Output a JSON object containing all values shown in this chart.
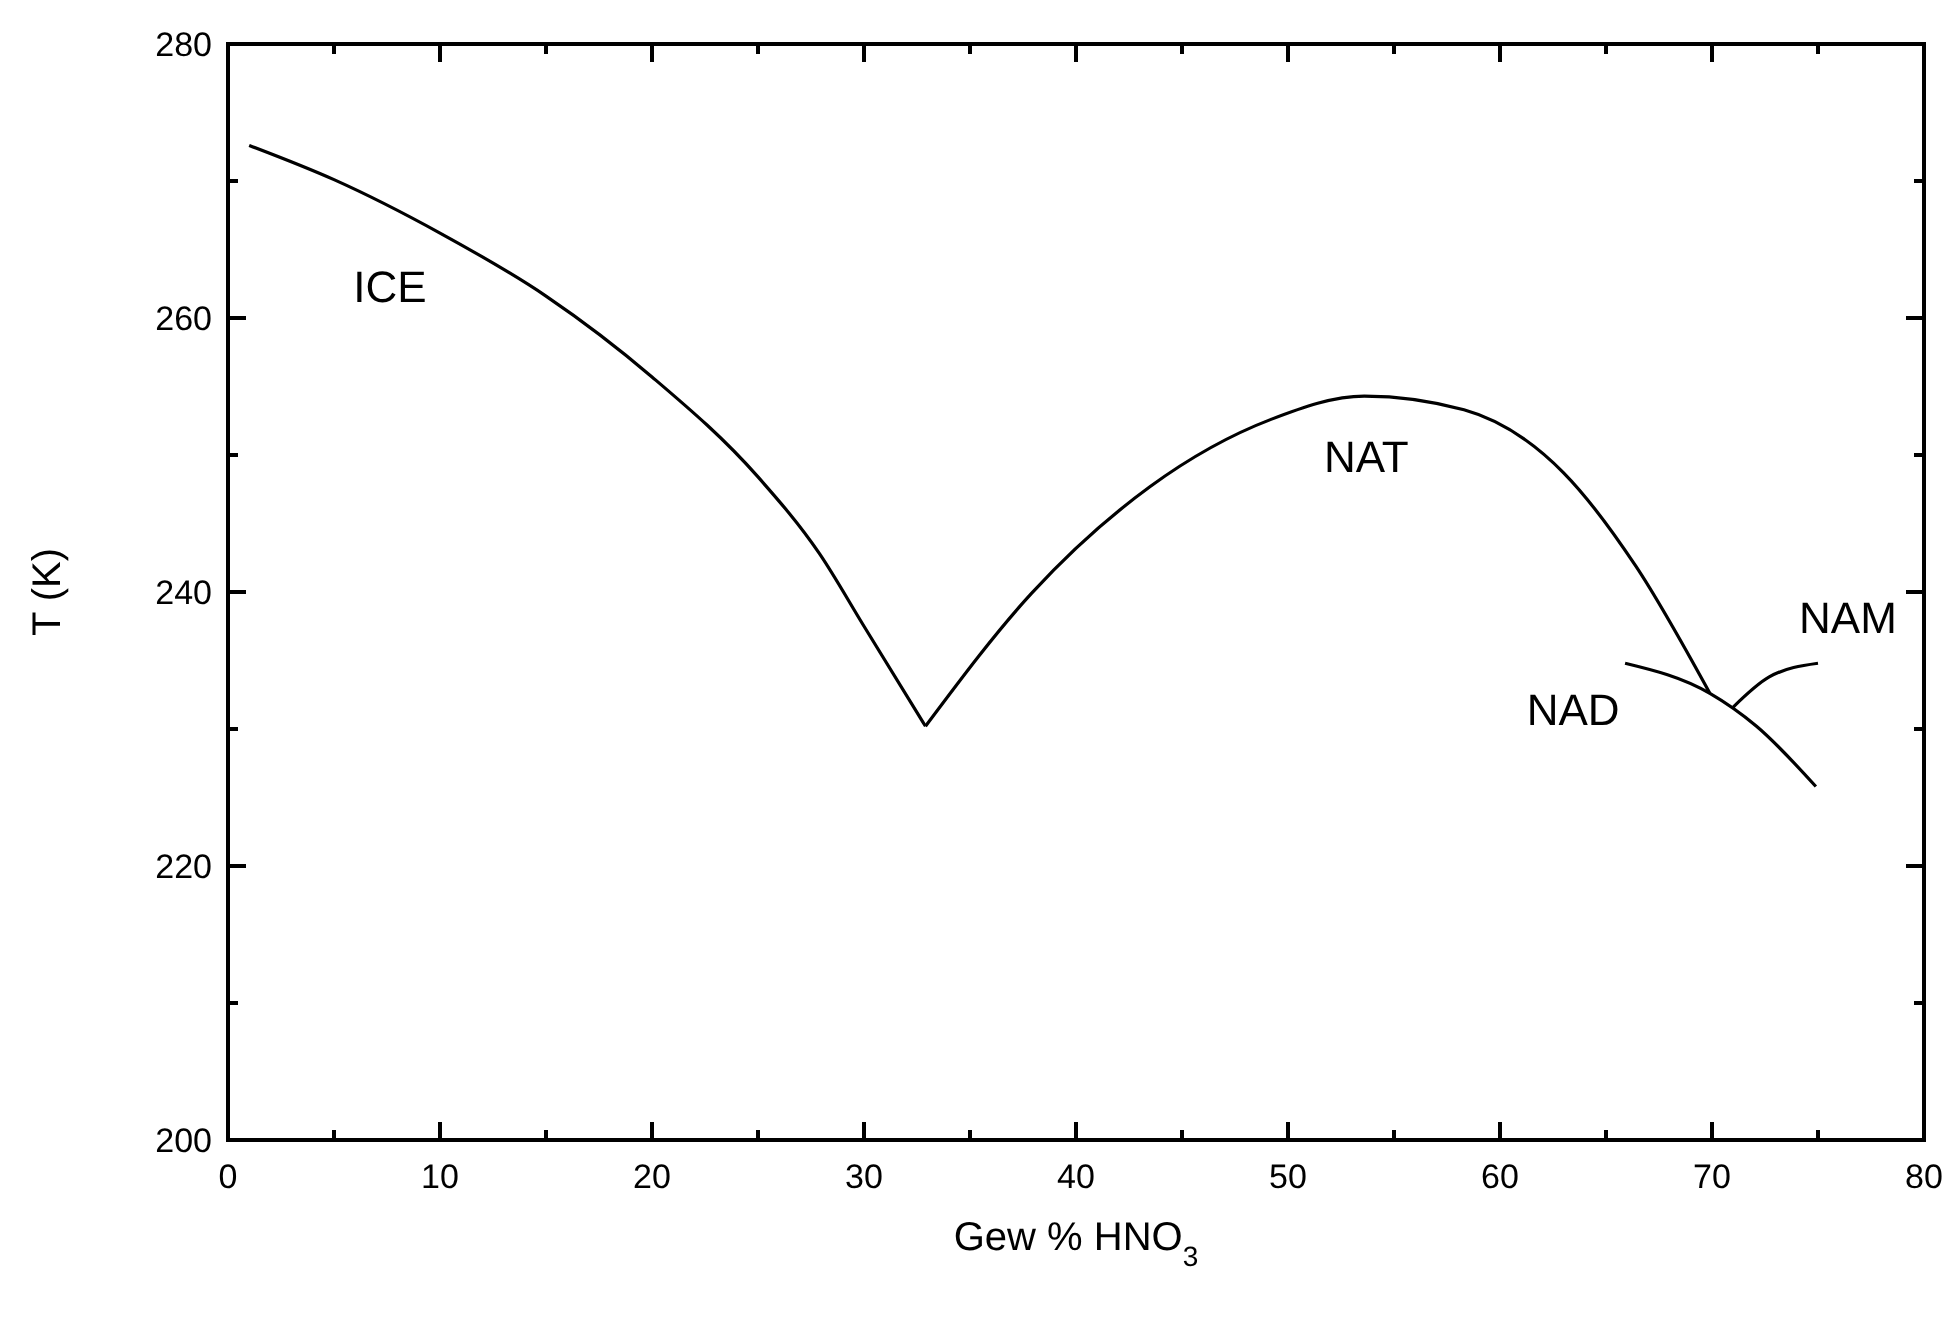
{
  "chart_data": {
    "type": "line",
    "xlabel": "Gew % HNO$_{3}$",
    "ylabel": "T (K)",
    "xlim": [
      0,
      80
    ],
    "ylim": [
      200,
      280
    ],
    "xticks": [
      0,
      {
        "value": 5,
        "label": null
      },
      10,
      {
        "value": 15,
        "label": null
      },
      20,
      {
        "value": 25,
        "label": null
      },
      30,
      {
        "value": 35,
        "label": null
      },
      40,
      {
        "value": 45,
        "label": null
      },
      50,
      {
        "value": 55,
        "label": null
      },
      60,
      {
        "value": 65,
        "label": null
      },
      70,
      {
        "value": 75,
        "label": null
      },
      80
    ],
    "yticks": [
      200,
      {
        "value": 210,
        "label": null
      },
      220,
      {
        "value": 230,
        "label": null
      },
      240,
      {
        "value": 250,
        "label": null
      },
      260,
      {
        "value": 270,
        "label": null
      },
      280
    ],
    "grid": false,
    "marker": "none",
    "line_style": "solid",
    "series": [
      {
        "name": "ICE",
        "color": "#000000",
        "x": [
          1,
          5,
          10,
          15,
          20,
          25,
          27.9,
          30,
          32.9
        ],
        "values": [
          272.6,
          270.1,
          266.2,
          261.6,
          255.7,
          248.4,
          242.8,
          237.5,
          230.2
        ]
      },
      {
        "name": "NAT",
        "color": "#000000",
        "x": [
          32.9,
          37.9,
          43.5,
          49.2,
          53.6,
          58.3,
          63,
          66.4,
          69.9
        ],
        "values": [
          230.2,
          239.9,
          247.7,
          252.6,
          254.3,
          253.3,
          248.7,
          241.9,
          232.6
        ]
      },
      {
        "name": "NAD",
        "color": "#000000",
        "x": [
          65.9,
          69.9,
          72.1,
          74.9
        ],
        "values": [
          234.8,
          232.6,
          230.2,
          225.8
        ]
      },
      {
        "name": "NAM",
        "color": "#000000",
        "x": [
          71,
          72.7,
          75
        ],
        "values": [
          231.6,
          233.8,
          234.8
        ]
      }
    ]
  }
}
